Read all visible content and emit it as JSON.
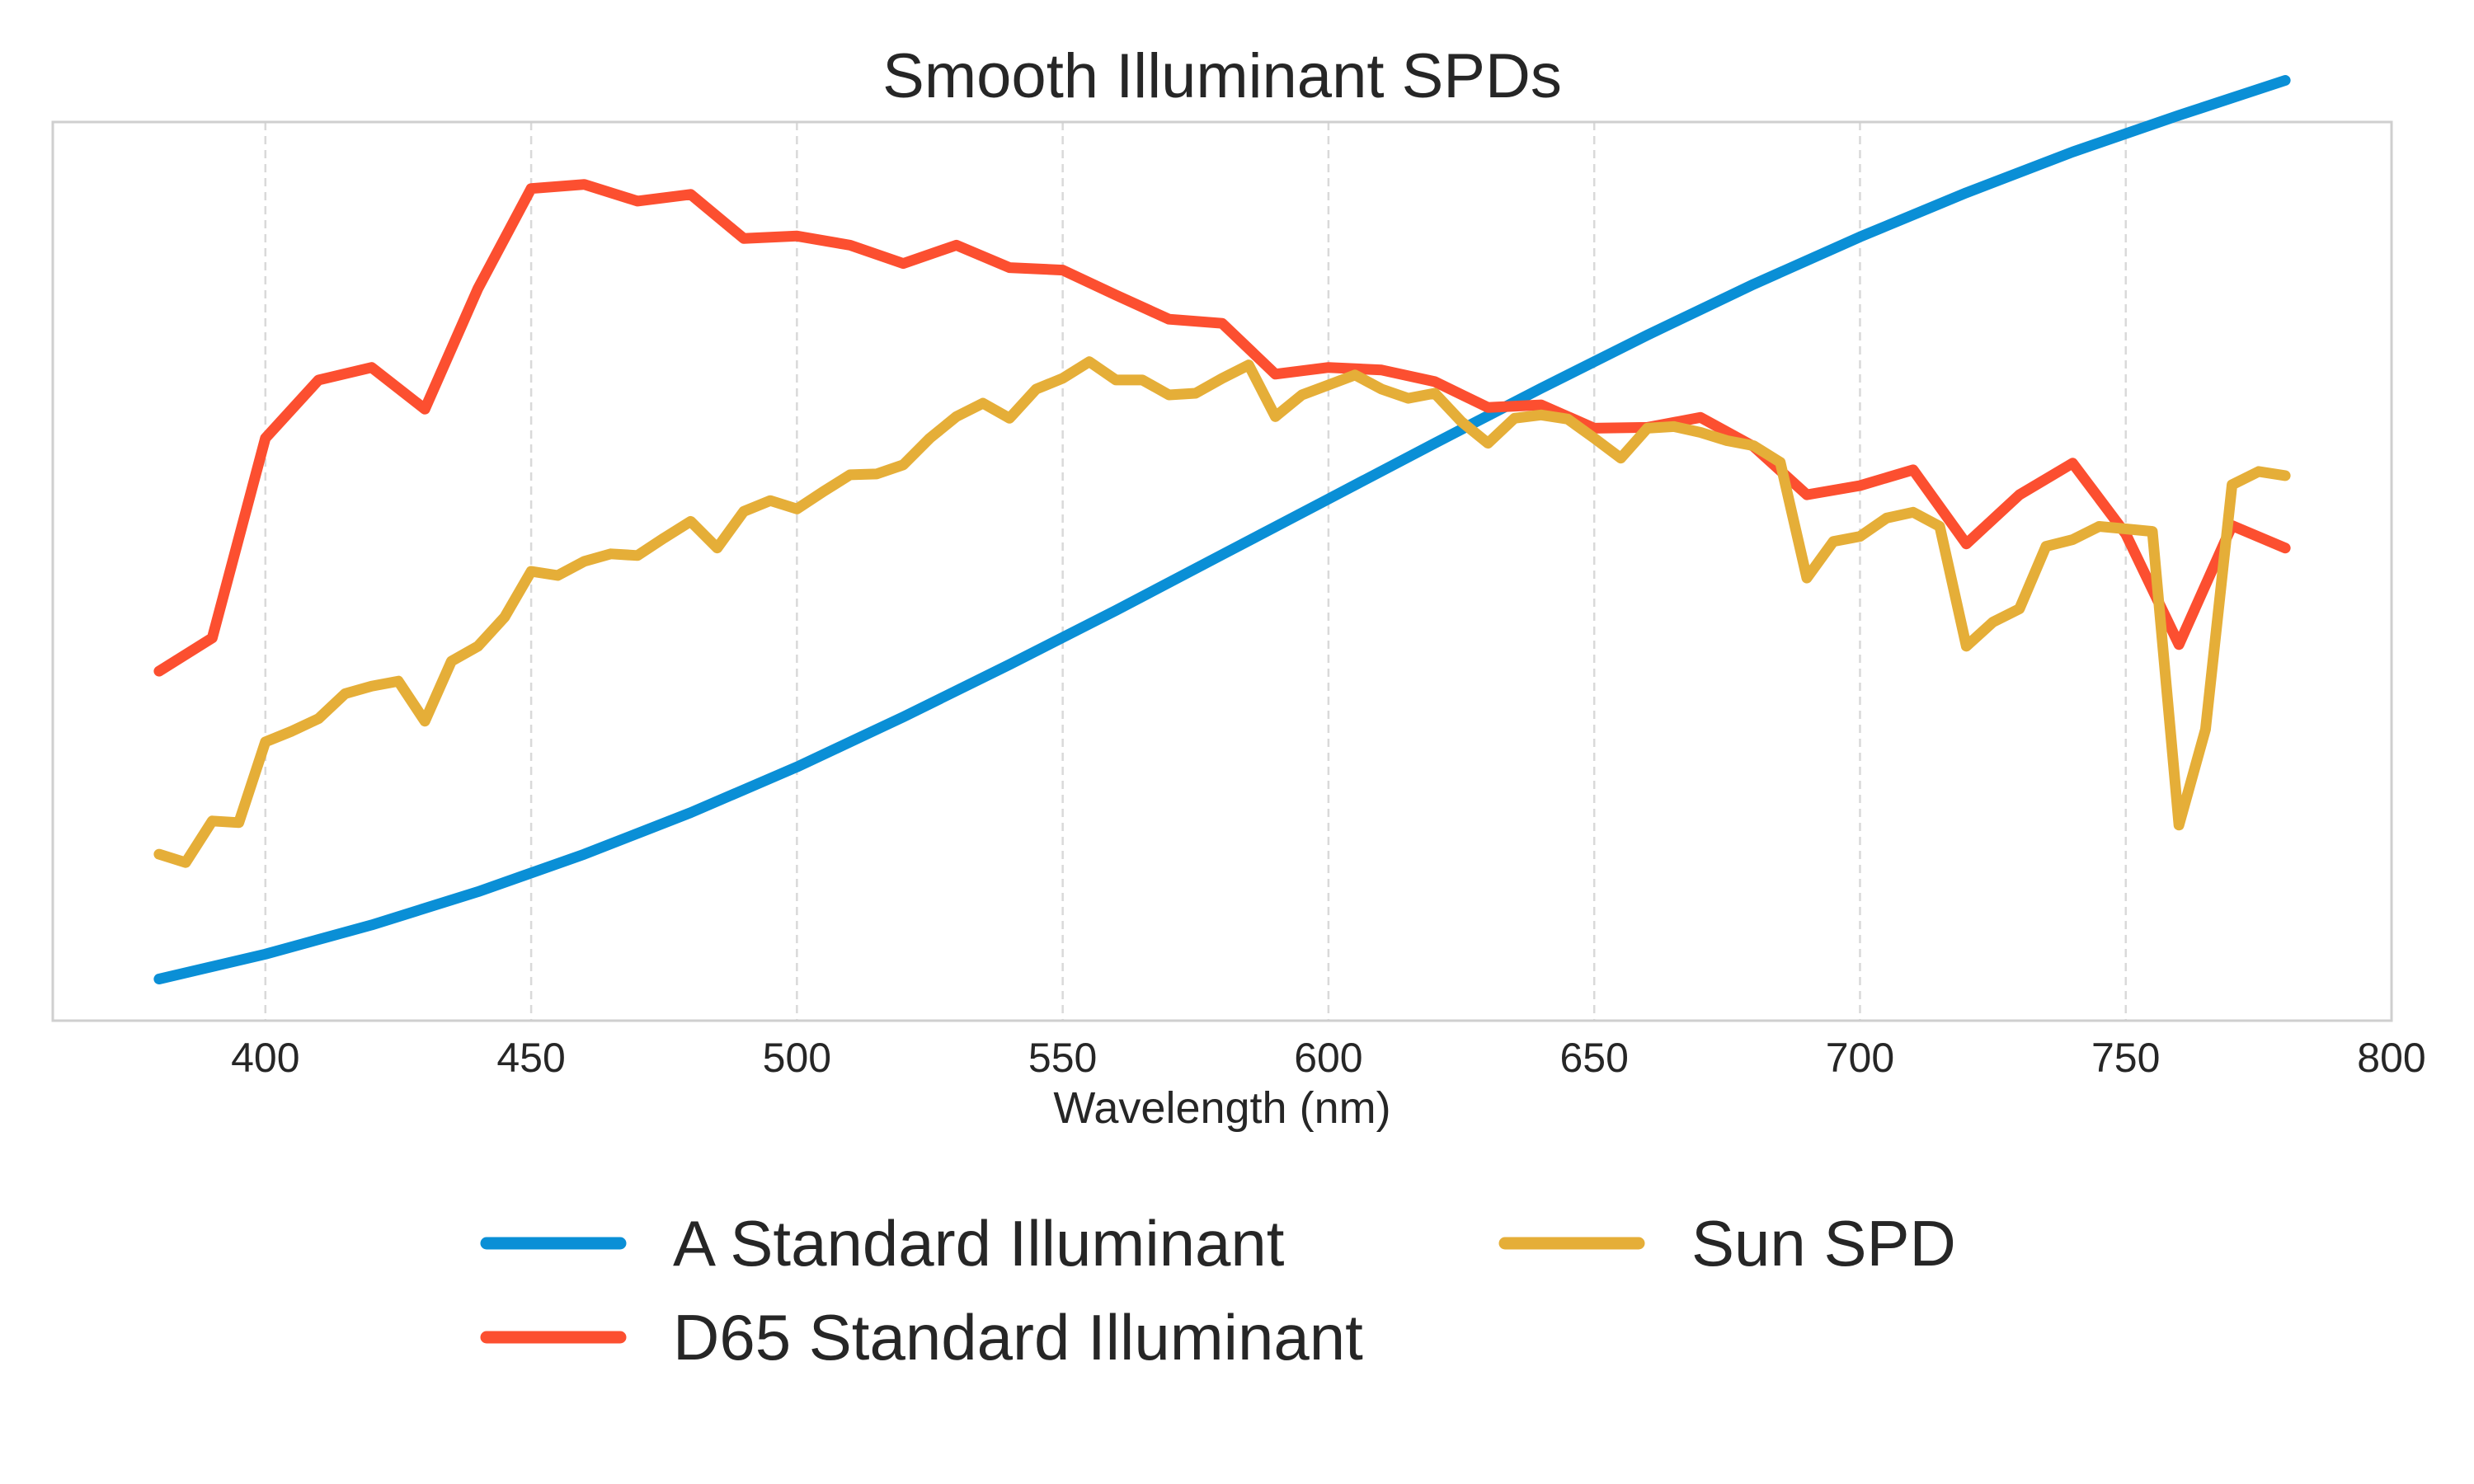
{
  "chart_data": {
    "type": "line",
    "title": "Smooth Illuminant SPDs",
    "xlabel": "Wavelength (nm)",
    "ylabel": "",
    "xlim": [
      360,
      800
    ],
    "ylim": [
      0,
      1.08
    ],
    "xticks": [
      400,
      450,
      500,
      550,
      600,
      650,
      700,
      750,
      800
    ],
    "yticks_visible": false,
    "grid": "vertical dashed",
    "legend_position": "bottom",
    "series": [
      {
        "name": "A Standard Illuminant",
        "color": "#0a8fd6",
        "x": [
          380,
          400,
          420,
          440,
          460,
          480,
          500,
          520,
          540,
          560,
          580,
          600,
          620,
          640,
          660,
          680,
          700,
          720,
          740,
          760,
          780
        ],
        "y": [
          0.05,
          0.08,
          0.115,
          0.155,
          0.2,
          0.25,
          0.305,
          0.365,
          0.428,
          0.493,
          0.56,
          0.627,
          0.694,
          0.76,
          0.824,
          0.885,
          0.942,
          0.995,
          1.044,
          1.088,
          1.13
        ]
      },
      {
        "name": "D65 Standard Illuminant",
        "color": "#fc4f30",
        "x": [
          380,
          390,
          400,
          410,
          420,
          430,
          440,
          450,
          460,
          470,
          480,
          490,
          500,
          510,
          520,
          530,
          540,
          550,
          560,
          570,
          580,
          590,
          600,
          610,
          620,
          630,
          640,
          650,
          660,
          670,
          680,
          690,
          700,
          710,
          720,
          730,
          740,
          750,
          760,
          770,
          780
        ],
        "y": [
          0.42,
          0.46,
          0.7,
          0.77,
          0.785,
          0.735,
          0.88,
          1.0,
          1.005,
          0.985,
          0.993,
          0.94,
          0.943,
          0.932,
          0.91,
          0.932,
          0.905,
          0.902,
          0.872,
          0.843,
          0.838,
          0.777,
          0.785,
          0.782,
          0.768,
          0.737,
          0.74,
          0.712,
          0.713,
          0.725,
          0.69,
          0.632,
          0.643,
          0.662,
          0.573,
          0.632,
          0.67,
          0.585,
          0.452,
          0.595,
          0.568
        ]
      },
      {
        "name": "Sun SPD",
        "color": "#e5ae38",
        "x": [
          380,
          385,
          390,
          395,
          400,
          405,
          410,
          415,
          420,
          425,
          430,
          435,
          440,
          445,
          450,
          455,
          460,
          465,
          470,
          475,
          480,
          485,
          490,
          495,
          500,
          505,
          510,
          515,
          520,
          525,
          530,
          535,
          540,
          545,
          550,
          555,
          560,
          565,
          570,
          575,
          580,
          585,
          590,
          595,
          600,
          605,
          610,
          615,
          620,
          625,
          630,
          635,
          640,
          645,
          650,
          655,
          660,
          665,
          670,
          675,
          680,
          685,
          690,
          695,
          700,
          705,
          710,
          715,
          720,
          725,
          730,
          735,
          740,
          745,
          750,
          755,
          760,
          765,
          770,
          775,
          780
        ],
        "y": [
          0.2,
          0.19,
          0.24,
          0.238,
          0.335,
          0.348,
          0.363,
          0.393,
          0.402,
          0.408,
          0.36,
          0.432,
          0.45,
          0.485,
          0.54,
          0.535,
          0.552,
          0.561,
          0.559,
          0.58,
          0.6,
          0.568,
          0.612,
          0.625,
          0.615,
          0.636,
          0.656,
          0.657,
          0.668,
          0.7,
          0.726,
          0.742,
          0.724,
          0.759,
          0.772,
          0.792,
          0.77,
          0.77,
          0.752,
          0.754,
          0.772,
          0.788,
          0.726,
          0.752,
          0.764,
          0.776,
          0.759,
          0.748,
          0.754,
          0.72,
          0.694,
          0.724,
          0.728,
          0.723,
          0.7,
          0.676,
          0.712,
          0.714,
          0.707,
          0.697,
          0.691,
          0.671,
          0.532,
          0.576,
          0.582,
          0.604,
          0.611,
          0.594,
          0.45,
          0.479,
          0.495,
          0.57,
          0.578,
          0.594,
          0.591,
          0.588,
          0.235,
          0.35,
          0.644,
          0.66,
          0.655
        ]
      }
    ]
  }
}
